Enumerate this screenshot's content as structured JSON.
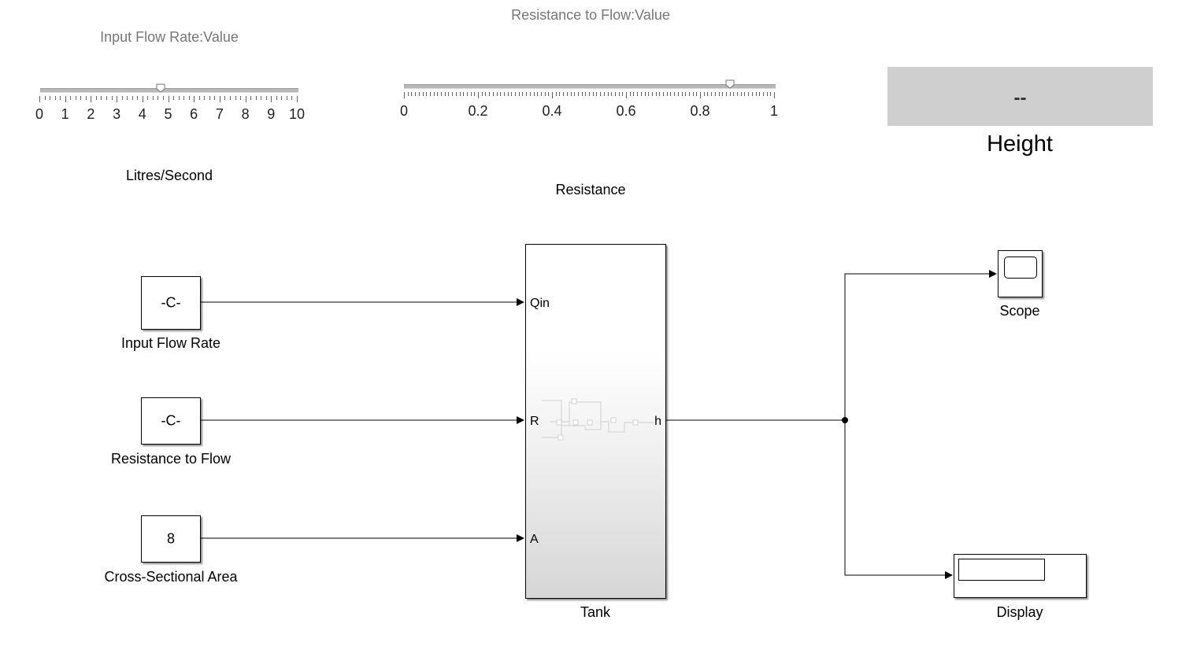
{
  "dashboard": {
    "input_flow_rate_title": "Input Flow Rate:Value",
    "input_flow_rate_unit": "Litres/Second",
    "input_flow_rate_ticks": [
      "0",
      "1",
      "2",
      "3",
      "4",
      "5",
      "6",
      "7",
      "8",
      "9",
      "10"
    ],
    "input_flow_rate_value": 4.7,
    "resistance_title": "Resistance to Flow:Value",
    "resistance_label": "Resistance",
    "resistance_ticks": [
      "0",
      "0.2",
      "0.4",
      "0.6",
      "0.8",
      "1"
    ],
    "resistance_value": 0.88,
    "display_value": "--",
    "display_label": "Height"
  },
  "blocks": {
    "input_flow_rate": {
      "text": "-C-",
      "label": "Input Flow Rate"
    },
    "resistance_to_flow": {
      "text": "-C-",
      "label": "Resistance to Flow"
    },
    "cross_sectional_area": {
      "text": "8",
      "label": "Cross-Sectional Area"
    },
    "tank": {
      "label": "Tank",
      "ports_in": [
        "Qin",
        "R",
        "A"
      ],
      "port_out": "h"
    },
    "scope": {
      "label": "Scope"
    },
    "display": {
      "label": "Display"
    }
  }
}
